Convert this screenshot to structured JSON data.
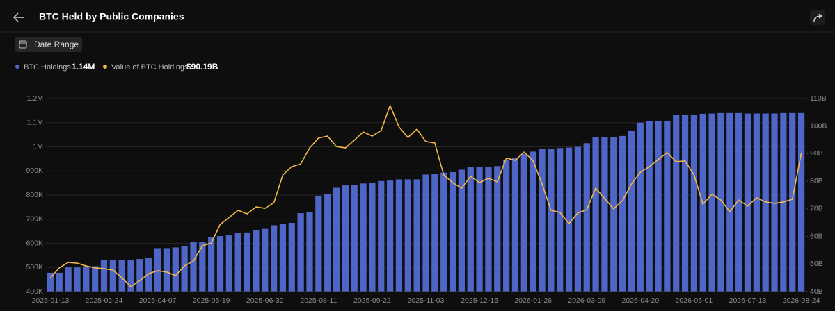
{
  "header": {
    "title": "BTC Held by Public Companies"
  },
  "controls": {
    "date_range": "Date Range"
  },
  "chart_data": {
    "type": "bar-line",
    "categories": [
      "2025-01-13",
      null,
      null,
      null,
      null,
      null,
      "2025-02-24",
      null,
      null,
      null,
      null,
      null,
      "2025-04-07",
      null,
      null,
      null,
      null,
      null,
      "2025-05-19",
      null,
      null,
      null,
      null,
      null,
      "2025-06-30",
      null,
      null,
      null,
      null,
      null,
      "2025-08-11",
      null,
      null,
      null,
      null,
      null,
      "2025-09-22",
      null,
      null,
      null,
      null,
      null,
      "2025-11-03",
      null,
      null,
      null,
      null,
      null,
      "2025-12-15",
      null,
      null,
      null,
      null,
      null,
      "2026-01-26",
      null,
      null,
      null,
      null,
      null,
      "2026-03-09",
      null,
      null,
      null,
      null,
      null,
      "2026-04-20",
      null,
      null,
      null,
      null,
      null,
      "2026-06-01",
      null,
      null,
      null,
      null,
      null,
      "2026-07-13",
      null,
      null,
      null,
      null,
      null,
      "2026-08-24"
    ],
    "series": [
      {
        "name": "BTC Holdings",
        "latest_label": "1.14M",
        "color": "#4f66c9",
        "axis": "y",
        "values": [
          478000,
          478000,
          500000,
          500000,
          505000,
          505000,
          530000,
          530000,
          530000,
          530000,
          535000,
          540000,
          580000,
          580000,
          583000,
          590000,
          605000,
          605000,
          625000,
          630000,
          633000,
          643000,
          645000,
          655000,
          660000,
          675000,
          680000,
          685000,
          725000,
          730000,
          795000,
          805000,
          830000,
          840000,
          843000,
          848000,
          850000,
          858000,
          860000,
          865000,
          865000,
          865000,
          885000,
          888000,
          893000,
          895000,
          905000,
          915000,
          918000,
          918000,
          920000,
          945000,
          955000,
          970000,
          980000,
          990000,
          990000,
          995000,
          997000,
          1000000,
          1015000,
          1040000,
          1040000,
          1040000,
          1045000,
          1065000,
          1100000,
          1105000,
          1105000,
          1108000,
          1132000,
          1132000,
          1133000,
          1137000,
          1138000,
          1140000,
          1140000,
          1140000,
          1138000,
          1138000,
          1138000,
          1138000,
          1140000,
          1140000,
          1140000
        ]
      },
      {
        "name": "Value of BTC Holdings",
        "latest_label": "$90.19B",
        "color": "#f2b84b",
        "axis": "y2",
        "values": [
          45.0,
          48.6,
          50.6,
          50.3,
          49.3,
          48.6,
          48.3,
          47.8,
          45.0,
          41.8,
          44.0,
          46.5,
          47.6,
          47.1,
          45.8,
          49.3,
          51.1,
          56.6,
          57.6,
          64.4,
          66.9,
          69.5,
          68.2,
          70.7,
          70.2,
          72.2,
          82.3,
          85.3,
          86.3,
          92.1,
          95.7,
          96.4,
          92.6,
          92.1,
          94.9,
          97.9,
          96.4,
          98.4,
          107.5,
          99.7,
          95.9,
          98.9,
          94.4,
          93.9,
          82.3,
          79.5,
          77.5,
          81.8,
          79.5,
          81.1,
          79.8,
          88.4,
          87.6,
          90.6,
          87.4,
          79.0,
          69.5,
          68.7,
          64.7,
          68.5,
          69.7,
          77.5,
          73.8,
          70.0,
          73.0,
          79.0,
          83.3,
          85.3,
          87.9,
          90.4,
          87.1,
          87.4,
          82.3,
          71.7,
          75.3,
          73.2,
          69.0,
          73.2,
          71.0,
          74.0,
          72.5,
          72.0,
          72.5,
          73.5,
          90.19
        ]
      }
    ],
    "ylim": [
      400000,
      1200000
    ],
    "yticks": [
      {
        "value": 400000,
        "label": "400K"
      },
      {
        "value": 500000,
        "label": "500K"
      },
      {
        "value": 600000,
        "label": "600K"
      },
      {
        "value": 700000,
        "label": "700K"
      },
      {
        "value": 800000,
        "label": "800K"
      },
      {
        "value": 900000,
        "label": "900K"
      },
      {
        "value": 1000000,
        "label": "1M"
      },
      {
        "value": 1100000,
        "label": "1.1M"
      },
      {
        "value": 1200000,
        "label": "1.2M"
      }
    ],
    "y2lim": [
      40,
      110
    ],
    "y2ticks": [
      {
        "value": 40,
        "label": "40B"
      },
      {
        "value": 50,
        "label": "50B"
      },
      {
        "value": 60,
        "label": "60B"
      },
      {
        "value": 70,
        "label": "70B"
      },
      {
        "value": 80,
        "label": "80B"
      },
      {
        "value": 90,
        "label": "90B"
      },
      {
        "value": 100,
        "label": "100B"
      },
      {
        "value": 110,
        "label": "110B"
      }
    ],
    "grid": true
  }
}
